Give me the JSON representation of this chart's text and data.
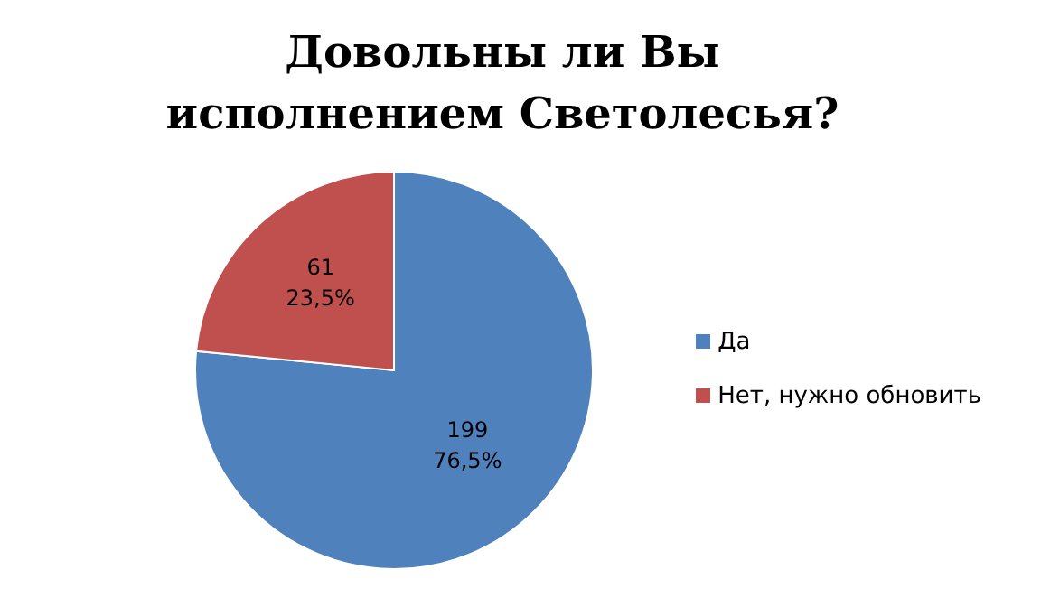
{
  "chart_data": {
    "type": "pie",
    "title": "Довольны ли Вы исполнением Светолесья?",
    "categories": [
      "Да",
      "Нет, нужно  обновить"
    ],
    "values": [
      199,
      61
    ],
    "colors": [
      "#4f81bd",
      "#c0504d"
    ],
    "value_labels": [
      "199\n76,5%",
      "61\n23,5%"
    ],
    "legend": "right"
  }
}
